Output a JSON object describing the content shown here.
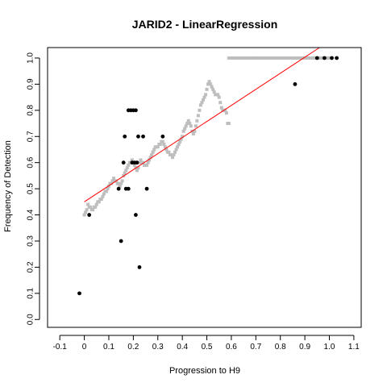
{
  "chart_data": {
    "type": "scatter",
    "title": "JARID2 - LinearRegression",
    "xlabel": "Progression to H9",
    "ylabel": "Frequency of Detection",
    "xlim": [
      -0.15,
      1.13
    ],
    "ylim": [
      -0.03,
      1.04
    ],
    "x_ticks": [
      -0.1,
      0.0,
      0.1,
      0.2,
      0.3,
      0.4,
      0.5,
      0.6,
      0.7,
      0.8,
      0.9,
      1.0,
      1.1
    ],
    "x_tick_labels": [
      "-0.1",
      "0",
      "0.1",
      "0.2",
      "0.3",
      "0.4",
      "0.5",
      "0.6",
      "0.7",
      "0.8",
      "0.9",
      "1.0",
      "1.1"
    ],
    "y_ticks": [
      0.0,
      0.1,
      0.2,
      0.3,
      0.4,
      0.5,
      0.6,
      0.7,
      0.8,
      0.9,
      1.0
    ],
    "y_tick_labels": [
      "0.0",
      "0.1",
      "0.2",
      "0.3",
      "0.4",
      "0.5",
      "0.6",
      "0.7",
      "0.8",
      "0.9",
      "1.0"
    ],
    "grid": false,
    "colors": {
      "observed": "#000000",
      "smoothed": "#bebebe",
      "regression": "#ff0000",
      "frame": "#000000"
    },
    "series": [
      {
        "style": "black-points",
        "points": [
          [
            -0.02,
            0.1
          ],
          [
            0.02,
            0.4
          ],
          [
            0.15,
            0.3
          ],
          [
            0.14,
            0.5
          ],
          [
            0.16,
            0.6
          ],
          [
            0.165,
            0.7
          ],
          [
            0.17,
            0.5
          ],
          [
            0.18,
            0.5
          ],
          [
            0.18,
            0.8
          ],
          [
            0.19,
            0.8
          ],
          [
            0.2,
            0.8
          ],
          [
            0.21,
            0.8
          ],
          [
            0.195,
            0.6
          ],
          [
            0.205,
            0.6
          ],
          [
            0.215,
            0.6
          ],
          [
            0.21,
            0.4
          ],
          [
            0.22,
            0.7
          ],
          [
            0.225,
            0.2
          ],
          [
            0.24,
            0.7
          ],
          [
            0.255,
            0.5
          ],
          [
            0.32,
            0.7
          ],
          [
            0.86,
            0.9
          ],
          [
            0.95,
            1.0
          ],
          [
            0.98,
            1.0
          ],
          [
            1.01,
            1.0
          ],
          [
            1.03,
            1.0
          ]
        ]
      },
      {
        "style": "gray-smoothed-points",
        "points": [
          [
            0.0,
            0.4
          ],
          [
            0.005,
            0.41
          ],
          [
            0.01,
            0.42
          ],
          [
            0.015,
            0.44
          ],
          [
            0.02,
            0.43
          ],
          [
            0.025,
            0.43
          ],
          [
            0.03,
            0.42
          ],
          [
            0.035,
            0.42
          ],
          [
            0.04,
            0.43
          ],
          [
            0.045,
            0.43
          ],
          [
            0.05,
            0.44
          ],
          [
            0.055,
            0.45
          ],
          [
            0.06,
            0.45
          ],
          [
            0.065,
            0.46
          ],
          [
            0.07,
            0.46
          ],
          [
            0.075,
            0.47
          ],
          [
            0.08,
            0.48
          ],
          [
            0.085,
            0.49
          ],
          [
            0.09,
            0.49
          ],
          [
            0.095,
            0.5
          ],
          [
            0.1,
            0.51
          ],
          [
            0.105,
            0.52
          ],
          [
            0.11,
            0.52
          ],
          [
            0.115,
            0.53
          ],
          [
            0.12,
            0.54
          ],
          [
            0.125,
            0.53
          ],
          [
            0.13,
            0.53
          ],
          [
            0.135,
            0.52
          ],
          [
            0.14,
            0.52
          ],
          [
            0.145,
            0.51
          ],
          [
            0.15,
            0.52
          ],
          [
            0.155,
            0.53
          ],
          [
            0.16,
            0.55
          ],
          [
            0.165,
            0.56
          ],
          [
            0.17,
            0.57
          ],
          [
            0.175,
            0.58
          ],
          [
            0.18,
            0.59
          ],
          [
            0.185,
            0.6
          ],
          [
            0.19,
            0.6
          ],
          [
            0.195,
            0.61
          ],
          [
            0.2,
            0.6
          ],
          [
            0.205,
            0.59
          ],
          [
            0.21,
            0.58
          ],
          [
            0.215,
            0.57
          ],
          [
            0.22,
            0.58
          ],
          [
            0.225,
            0.6
          ],
          [
            0.23,
            0.61
          ],
          [
            0.235,
            0.6
          ],
          [
            0.24,
            0.6
          ],
          [
            0.245,
            0.59
          ],
          [
            0.25,
            0.59
          ],
          [
            0.255,
            0.59
          ],
          [
            0.26,
            0.6
          ],
          [
            0.265,
            0.61
          ],
          [
            0.27,
            0.62
          ],
          [
            0.275,
            0.63
          ],
          [
            0.28,
            0.64
          ],
          [
            0.285,
            0.65
          ],
          [
            0.29,
            0.66
          ],
          [
            0.295,
            0.66
          ],
          [
            0.3,
            0.66
          ],
          [
            0.305,
            0.67
          ],
          [
            0.31,
            0.67
          ],
          [
            0.315,
            0.68
          ],
          [
            0.32,
            0.68
          ],
          [
            0.325,
            0.67
          ],
          [
            0.33,
            0.66
          ],
          [
            0.335,
            0.65
          ],
          [
            0.34,
            0.64
          ],
          [
            0.345,
            0.64
          ],
          [
            0.35,
            0.63
          ],
          [
            0.355,
            0.63
          ],
          [
            0.36,
            0.62
          ],
          [
            0.365,
            0.63
          ],
          [
            0.37,
            0.64
          ],
          [
            0.375,
            0.65
          ],
          [
            0.38,
            0.66
          ],
          [
            0.385,
            0.67
          ],
          [
            0.39,
            0.68
          ],
          [
            0.395,
            0.69
          ],
          [
            0.4,
            0.7
          ],
          [
            0.405,
            0.72
          ],
          [
            0.41,
            0.73
          ],
          [
            0.415,
            0.74
          ],
          [
            0.42,
            0.75
          ],
          [
            0.425,
            0.76
          ],
          [
            0.43,
            0.75
          ],
          [
            0.435,
            0.74
          ],
          [
            0.44,
            0.72
          ],
          [
            0.445,
            0.71
          ],
          [
            0.45,
            0.72
          ],
          [
            0.455,
            0.74
          ],
          [
            0.46,
            0.76
          ],
          [
            0.465,
            0.78
          ],
          [
            0.47,
            0.8
          ],
          [
            0.475,
            0.82
          ],
          [
            0.48,
            0.83
          ],
          [
            0.485,
            0.84
          ],
          [
            0.49,
            0.85
          ],
          [
            0.495,
            0.86
          ],
          [
            0.5,
            0.88
          ],
          [
            0.505,
            0.9
          ],
          [
            0.51,
            0.91
          ],
          [
            0.515,
            0.9
          ],
          [
            0.52,
            0.89
          ],
          [
            0.525,
            0.88
          ],
          [
            0.53,
            0.87
          ],
          [
            0.535,
            0.86
          ],
          [
            0.54,
            0.86
          ],
          [
            0.545,
            0.86
          ],
          [
            0.55,
            0.85
          ],
          [
            0.555,
            0.83
          ],
          [
            0.56,
            0.81
          ],
          [
            0.565,
            0.8
          ],
          [
            0.57,
            0.8
          ],
          [
            0.575,
            0.8
          ],
          [
            0.58,
            0.79
          ],
          [
            0.585,
            0.75
          ],
          [
            0.59,
            0.75
          ],
          [
            0.59,
            1.0
          ],
          [
            0.6,
            1.0
          ],
          [
            0.61,
            1.0
          ],
          [
            0.62,
            1.0
          ],
          [
            0.63,
            1.0
          ],
          [
            0.64,
            1.0
          ],
          [
            0.65,
            1.0
          ],
          [
            0.66,
            1.0
          ],
          [
            0.67,
            1.0
          ],
          [
            0.68,
            1.0
          ],
          [
            0.69,
            1.0
          ],
          [
            0.7,
            1.0
          ],
          [
            0.71,
            1.0
          ],
          [
            0.72,
            1.0
          ],
          [
            0.73,
            1.0
          ],
          [
            0.74,
            1.0
          ],
          [
            0.75,
            1.0
          ],
          [
            0.76,
            1.0
          ],
          [
            0.77,
            1.0
          ],
          [
            0.78,
            1.0
          ],
          [
            0.79,
            1.0
          ],
          [
            0.8,
            1.0
          ],
          [
            0.81,
            1.0
          ],
          [
            0.82,
            1.0
          ],
          [
            0.83,
            1.0
          ],
          [
            0.84,
            1.0
          ],
          [
            0.85,
            1.0
          ],
          [
            0.86,
            1.0
          ],
          [
            0.87,
            1.0
          ],
          [
            0.88,
            1.0
          ],
          [
            0.89,
            1.0
          ],
          [
            0.9,
            1.0
          ],
          [
            0.91,
            1.0
          ],
          [
            0.92,
            1.0
          ],
          [
            0.93,
            1.0
          ],
          [
            0.94,
            1.0
          ],
          [
            0.95,
            1.0
          ],
          [
            0.96,
            1.0
          ],
          [
            0.97,
            1.0
          ],
          [
            0.98,
            1.0
          ],
          [
            0.99,
            1.0
          ],
          [
            1.0,
            1.0
          ]
        ]
      },
      {
        "style": "red-regression-line",
        "points": [
          [
            0.0,
            0.45
          ],
          [
            0.96,
            1.04
          ]
        ]
      }
    ]
  }
}
